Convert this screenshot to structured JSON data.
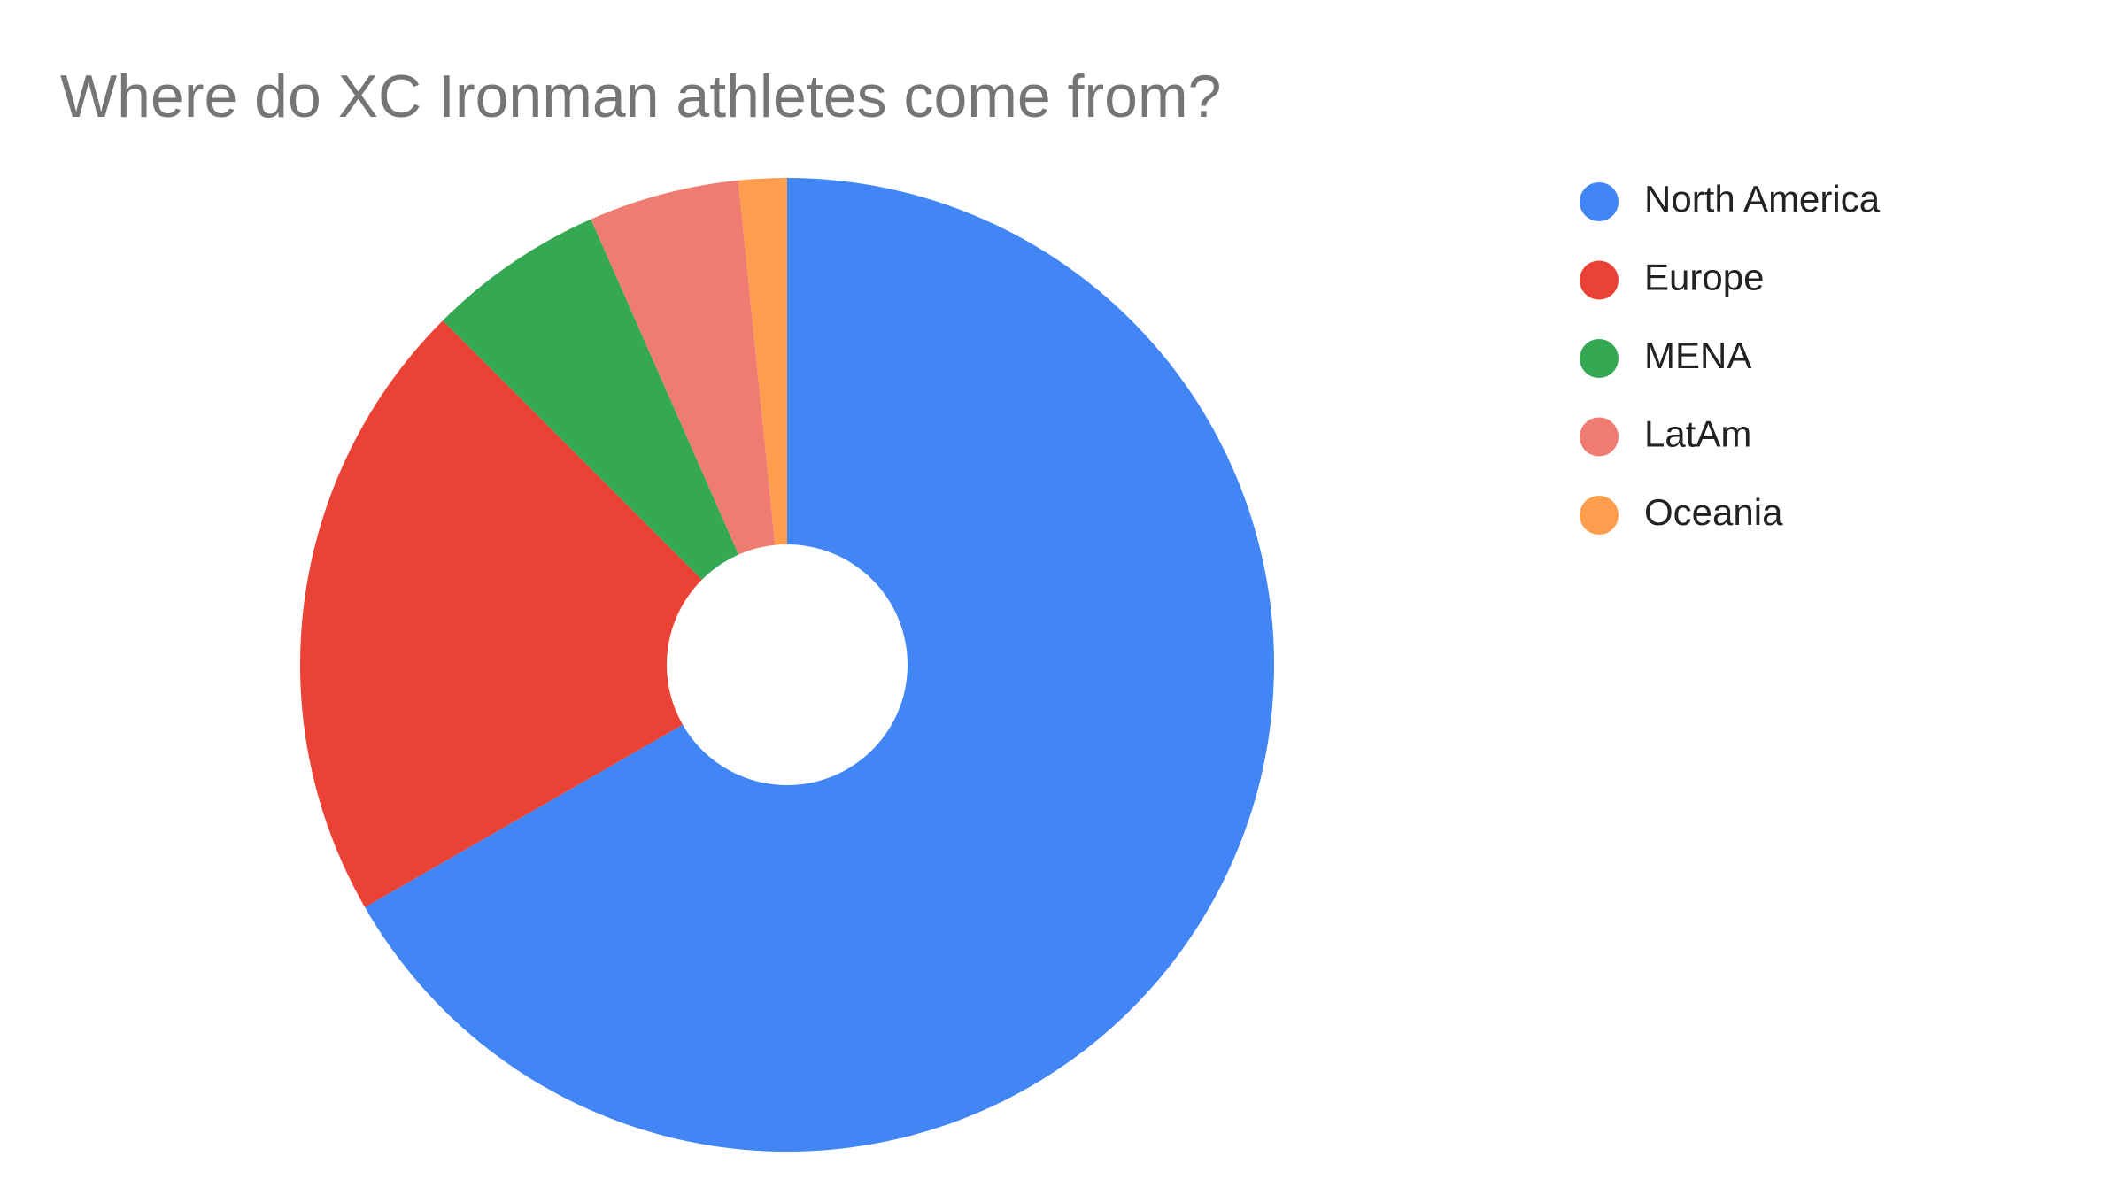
{
  "chart_data": {
    "type": "pie",
    "title": "Where do XC Ironman athletes come from?",
    "categories": [
      "North America",
      "Europe",
      "MENA",
      "LatAm",
      "Oceania"
    ],
    "values": [
      66.7,
      20.8,
      5.9,
      5.0,
      1.6
    ],
    "colors": [
      "#4285f4",
      "#ea4335",
      "#34a853",
      "#ef7c72",
      "#ff9d4f"
    ],
    "donut": true,
    "legend": "right"
  }
}
